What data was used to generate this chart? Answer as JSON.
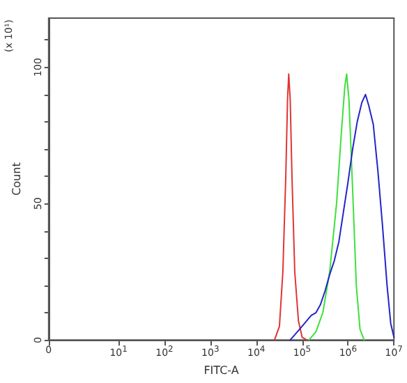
{
  "chart_data": {
    "type": "line",
    "xlabel": "FITC-A",
    "ylabel": "Count",
    "annotations": [
      "(x 10¹)"
    ],
    "log": "x",
    "xlim": [
      0.3,
      10000000
    ],
    "ylim": [
      0,
      118
    ],
    "xticks": [
      {
        "value": 0.3,
        "label": "0"
      },
      {
        "value": 10,
        "label": "10$^{1}$"
      },
      {
        "value": 100,
        "label": "10$^{2}$"
      },
      {
        "value": 1000,
        "label": "10$^{3}$"
      },
      {
        "value": 10000,
        "label": "10$^{4}$"
      },
      {
        "value": 100000,
        "label": "10$^{5}$"
      },
      {
        "value": 1000000,
        "label": "10$^{6}$"
      },
      {
        "value": 10000000,
        "label": "10$^{7}$"
      }
    ],
    "yticks": [
      0,
      {
        "value": 10,
        "label": null
      },
      {
        "value": 20,
        "label": null
      },
      {
        "value": 30,
        "label": null
      },
      {
        "value": 40,
        "label": null
      },
      50,
      {
        "value": 60,
        "label": null
      },
      {
        "value": 70,
        "label": null
      },
      {
        "value": 80,
        "label": null
      },
      {
        "value": 90,
        "label": null
      },
      100,
      {
        "value": 110,
        "label": null
      }
    ],
    "grid": false,
    "marker": "none",
    "line_style": "solid",
    "series": [
      {
        "color": "#e03434",
        "x": [
          25000,
          32000,
          38000,
          44000,
          48000,
          51000,
          55000,
          60000,
          69000,
          83000,
          100000,
          126000
        ],
        "values": [
          0,
          5,
          25,
          60,
          88,
          97.5,
          88,
          60,
          25,
          7,
          1,
          0
        ]
      },
      {
        "color": "#3ce03c",
        "x": [
          141000,
          200000,
          282000,
          398000,
          562000,
          708000,
          851000,
          933000,
          1047000,
          1259000,
          1514000,
          1820000,
          2239000
        ],
        "values": [
          0,
          3,
          10,
          25,
          50,
          75,
          93,
          97.5,
          88,
          55,
          20,
          4,
          0
        ]
      },
      {
        "color": "#2424c8",
        "x": [
          55000,
          79000,
          112000,
          158000,
          200000,
          251000,
          316000,
          398000,
          501000,
          631000,
          794000,
          1000000,
          1259000,
          1585000,
          1995000,
          2399000,
          2818000,
          3548000,
          4467000,
          5623000,
          7079000,
          8511000,
          10000000
        ],
        "values": [
          0,
          3,
          6,
          9,
          10,
          13,
          18,
          24,
          29,
          36,
          47,
          58,
          70,
          80,
          87,
          90,
          86,
          79,
          62,
          42,
          20,
          6,
          1
        ]
      }
    ]
  }
}
